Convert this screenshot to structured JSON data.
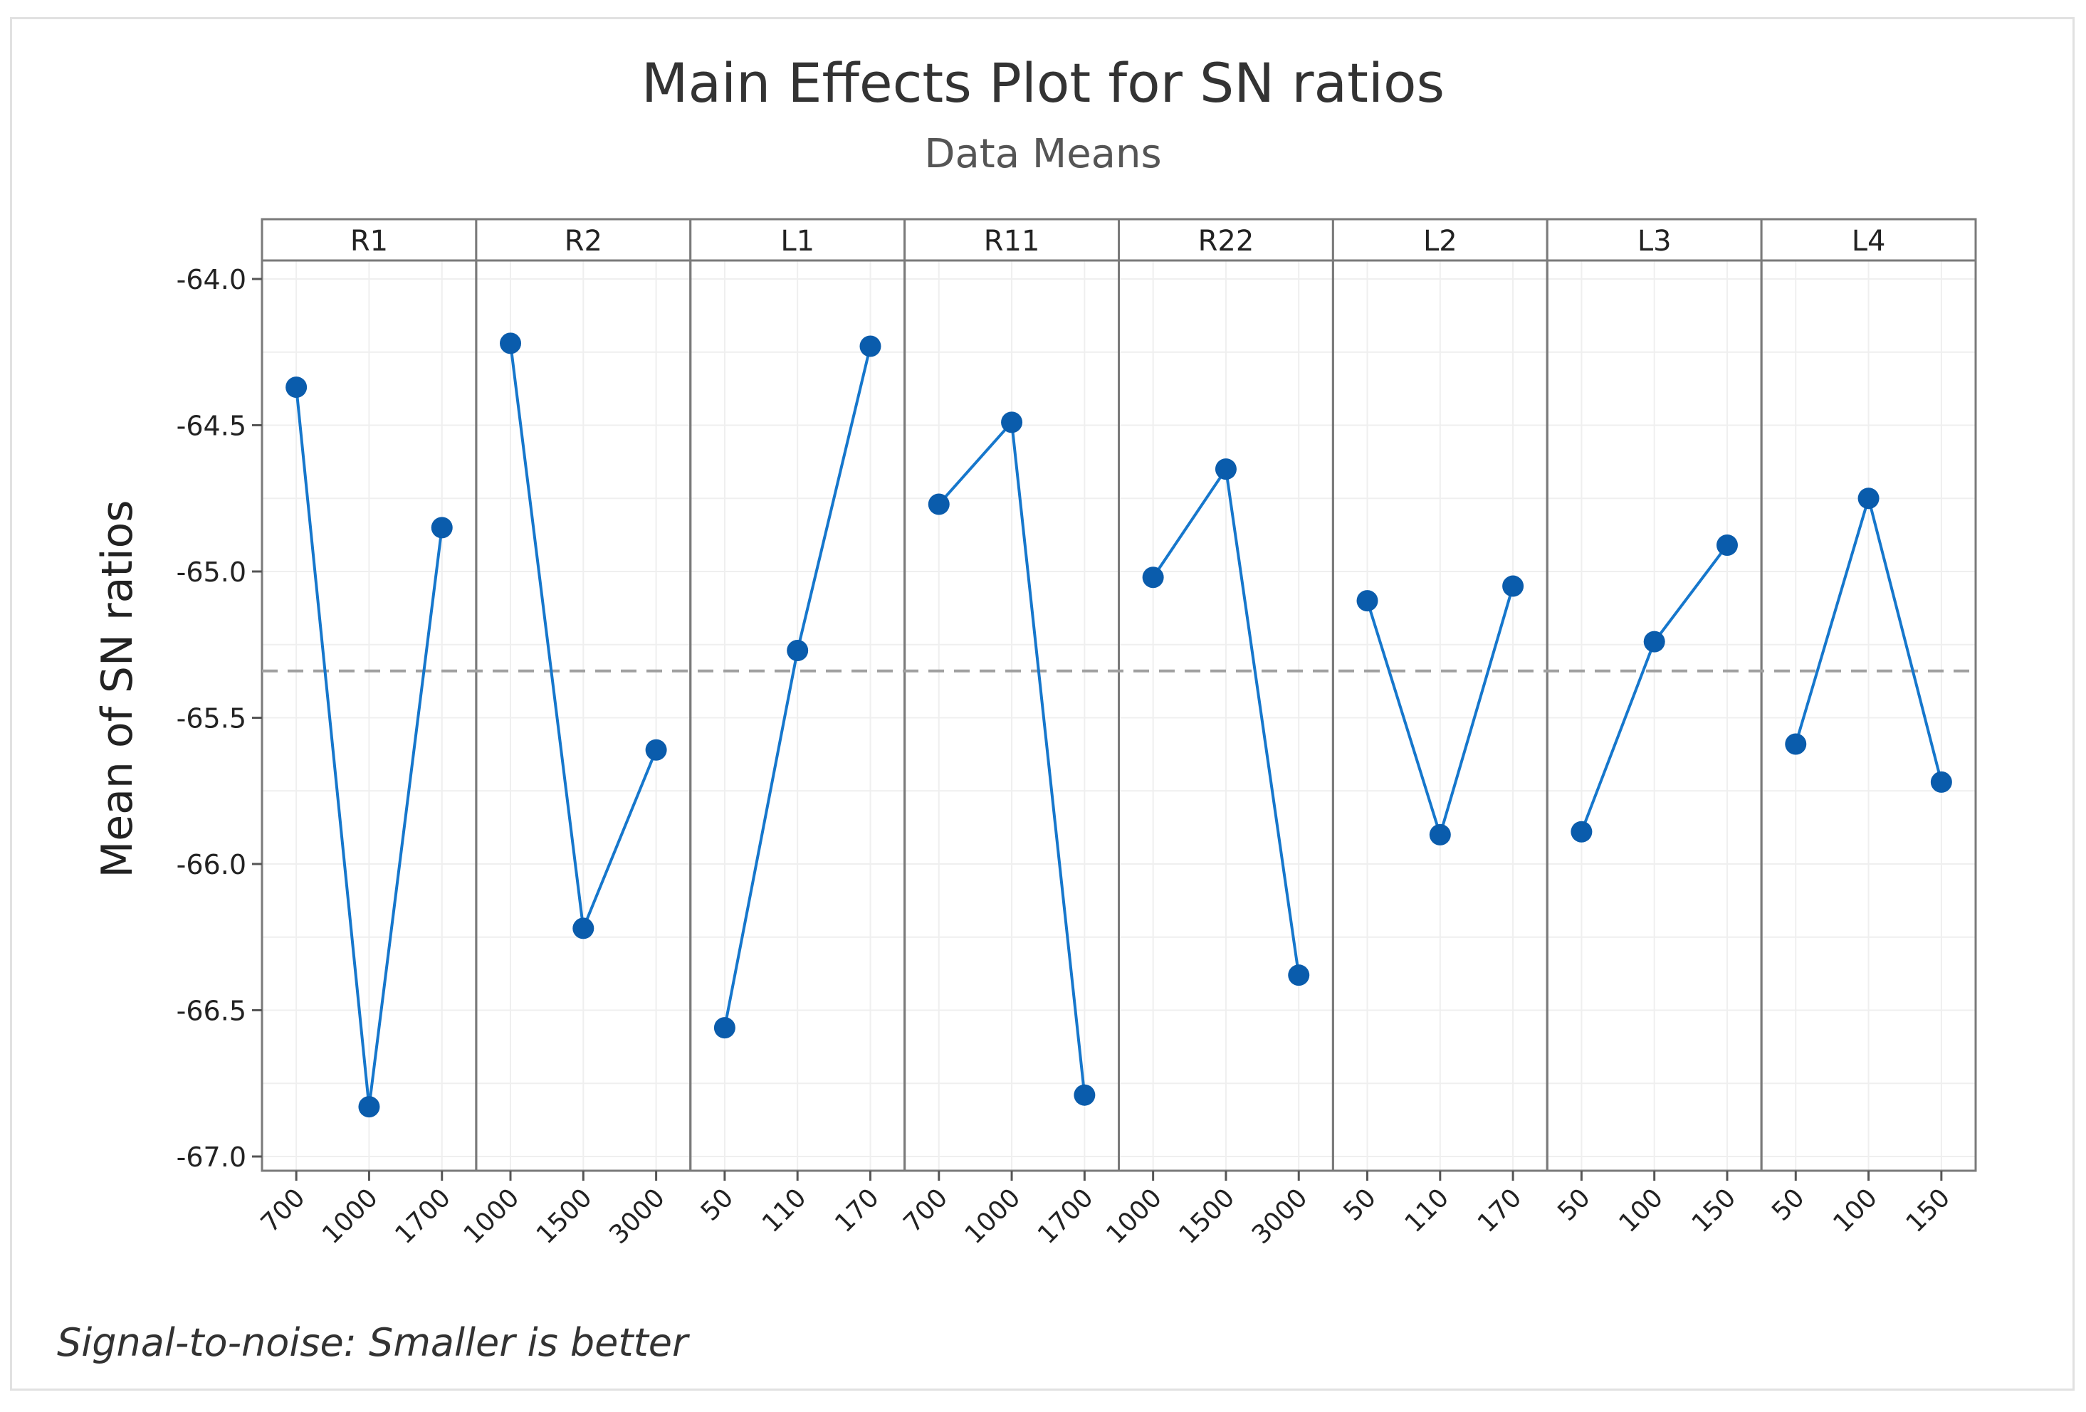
{
  "chart_data": {
    "type": "line",
    "title": "Main Effects Plot for SN ratios",
    "subtitle": "Data Means",
    "ylabel": "Mean of SN ratios",
    "xlabel": "",
    "ylim": [
      -67.05,
      -63.9
    ],
    "yticks": [
      -64.0,
      -64.5,
      -65.0,
      -65.5,
      -66.0,
      -66.5,
      -67.0
    ],
    "ytick_labels": [
      "-64.0",
      "-64.5",
      "-65.0",
      "-65.5",
      "-66.0",
      "-66.5",
      "-67.0"
    ],
    "reference_line": -65.34,
    "grid": true,
    "footnote": "Signal-to-noise: Smaller is better",
    "colors": {
      "series": "#0a5cac",
      "line": "#1677cc",
      "reference": "#a0a0a0"
    },
    "panels": [
      {
        "name": "R1",
        "levels": [
          "700",
          "1000",
          "1700"
        ],
        "values": [
          -64.37,
          -66.83,
          -64.85
        ]
      },
      {
        "name": "R2",
        "levels": [
          "1000",
          "1500",
          "3000"
        ],
        "values": [
          -64.22,
          -66.22,
          -65.61
        ]
      },
      {
        "name": "L1",
        "levels": [
          "50",
          "110",
          "170"
        ],
        "values": [
          -66.56,
          -65.27,
          -64.23
        ]
      },
      {
        "name": "R11",
        "levels": [
          "700",
          "1000",
          "1700"
        ],
        "values": [
          -64.77,
          -64.49,
          -66.79
        ]
      },
      {
        "name": "R22",
        "levels": [
          "1000",
          "1500",
          "3000"
        ],
        "values": [
          -65.02,
          -64.65,
          -66.38
        ]
      },
      {
        "name": "L2",
        "levels": [
          "50",
          "110",
          "170"
        ],
        "values": [
          -65.1,
          -65.9,
          -65.05
        ]
      },
      {
        "name": "L3",
        "levels": [
          "50",
          "100",
          "150"
        ],
        "values": [
          -65.89,
          -65.24,
          -64.91
        ]
      },
      {
        "name": "L4",
        "levels": [
          "50",
          "100",
          "150"
        ],
        "values": [
          -65.59,
          -64.75,
          -65.72
        ]
      }
    ]
  }
}
